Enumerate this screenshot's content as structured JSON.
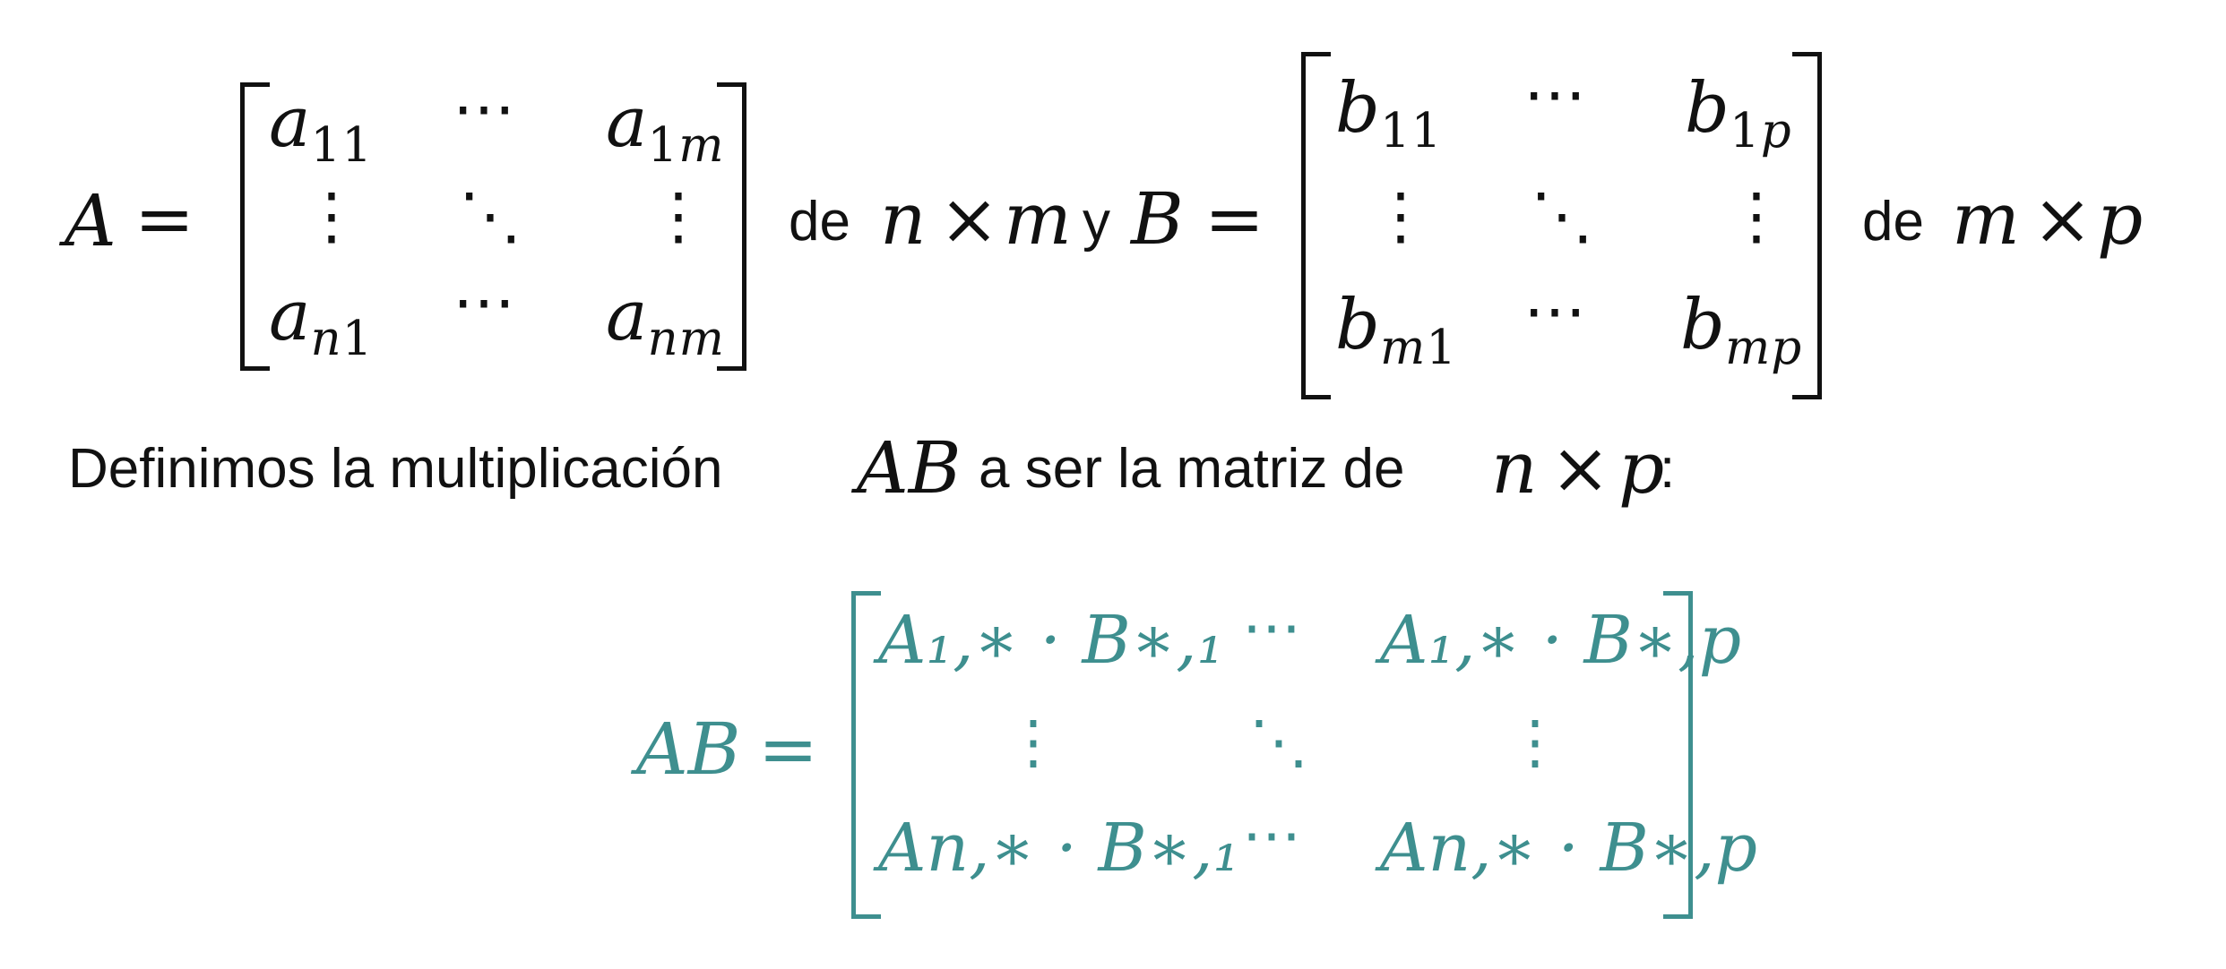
{
  "slide": {
    "row1": {
      "A_label": "A",
      "eq1": "=",
      "A_matrix": {
        "r1c1": {
          "base": "a",
          "sub": "11"
        },
        "r1c2": "⋯",
        "r1c3": {
          "base": "a",
          "sub_num": "1",
          "sub_var": "m"
        },
        "r2c1": "⋮",
        "r2c2": "⋱",
        "r2c3": "⋮",
        "r3c1": {
          "base": "a",
          "sub_var": "n",
          "sub_num": "1"
        },
        "r3c2": "⋯",
        "r3c3": {
          "base": "a",
          "sub_var": "nm"
        }
      },
      "de1": "de",
      "n1": "n",
      "times1": "×",
      "m1": "m",
      "y": "y",
      "B_label": "B",
      "eq2": "=",
      "B_matrix": {
        "r1c1": {
          "base": "b",
          "sub": "11"
        },
        "r1c2": "⋯",
        "r1c3": {
          "base": "b",
          "sub_num": "1",
          "sub_var": "p"
        },
        "r2c1": "⋮",
        "r2c2": "⋱",
        "r2c3": "⋮",
        "r3c1": {
          "base": "b",
          "sub_var": "m",
          "sub_num": "1"
        },
        "r3c2": "⋯",
        "r3c3": {
          "base": "b",
          "sub_var": "mp"
        }
      },
      "de2": "de",
      "m2": "m",
      "times2": "×",
      "p2": "p"
    },
    "sentence": {
      "text_before": "Definimos la multiplicación",
      "AB": "AB",
      "text_mid": "a ser la matriz de",
      "n": "n",
      "times": "×",
      "p": "p",
      "colon": ":"
    },
    "result": {
      "AB_label": "AB",
      "eq": "=",
      "r1c1": "A₁,∗ · B∗,₁",
      "r1c2": "⋯",
      "r1c3": "A₁,∗ · B∗,p",
      "r2c1": "⋮",
      "r2c2": "⋱",
      "r2c3": "⋮",
      "r3c1": "An,∗ · B∗,₁",
      "r3c2": "⋯",
      "r3c3": "An,∗ · B∗,p"
    },
    "colors": {
      "text": "#111111",
      "accent": "#3e8f8f"
    }
  }
}
